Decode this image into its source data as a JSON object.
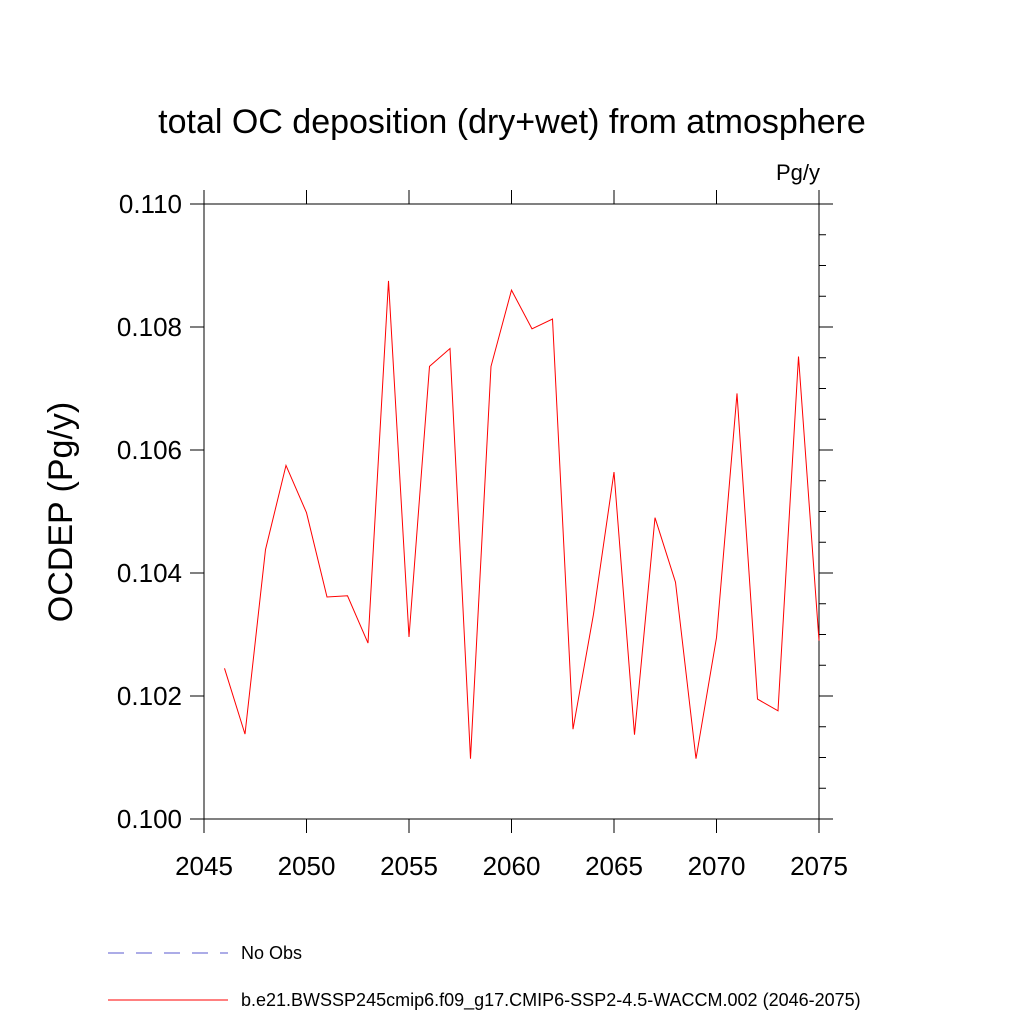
{
  "chart_data": {
    "type": "line",
    "title": "total OC deposition (dry+wet) from atmosphere",
    "units_label": "Pg/y",
    "xlabel": "",
    "ylabel": "OCDEP  (Pg/y)",
    "xlim": [
      2045,
      2075
    ],
    "ylim": [
      0.1,
      0.11
    ],
    "x_ticks": [
      2045,
      2050,
      2055,
      2060,
      2065,
      2070,
      2075
    ],
    "x_tick_labels": [
      "2045",
      "2050",
      "2055",
      "2060",
      "2065",
      "2070",
      "2075"
    ],
    "y_ticks": [
      0.1,
      0.102,
      0.104,
      0.106,
      0.108,
      0.11
    ],
    "y_tick_labels": [
      "0.100",
      "0.102",
      "0.104",
      "0.106",
      "0.108",
      "0.110"
    ],
    "grid": false,
    "legend_position": "bottom-left",
    "series": [
      {
        "name": "b.e21.BWSSP245cmip6.f09_g17.CMIP6-SSP2-4.5-WACCM.002 (2046-2075)",
        "color": "#ff0000",
        "style": "solid",
        "x": [
          2046,
          2047,
          2048,
          2049,
          2050,
          2051,
          2052,
          2053,
          2054,
          2055,
          2056,
          2057,
          2058,
          2059,
          2060,
          2061,
          2062,
          2063,
          2064,
          2065,
          2066,
          2067,
          2068,
          2069,
          2070,
          2071,
          2072,
          2073,
          2074,
          2075
        ],
        "values": [
          0.10245,
          0.10138,
          0.10438,
          0.10575,
          0.10498,
          0.10361,
          0.10363,
          0.10286,
          0.10875,
          0.10296,
          0.10736,
          0.10765,
          0.10098,
          0.10736,
          0.1086,
          0.10797,
          0.10813,
          0.10146,
          0.10333,
          0.10564,
          0.10137,
          0.1049,
          0.10385,
          0.10098,
          0.10295,
          0.10692,
          0.10195,
          0.10176,
          0.10752,
          0.1029
        ]
      }
    ],
    "legend": [
      {
        "label": "No Obs",
        "color": "#5a5acf",
        "style": "dashed"
      },
      {
        "label": "b.e21.BWSSP245cmip6.f09_g17.CMIP6-SSP2-4.5-WACCM.002 (2046-2075)",
        "color": "#ff0000",
        "style": "solid"
      }
    ]
  }
}
